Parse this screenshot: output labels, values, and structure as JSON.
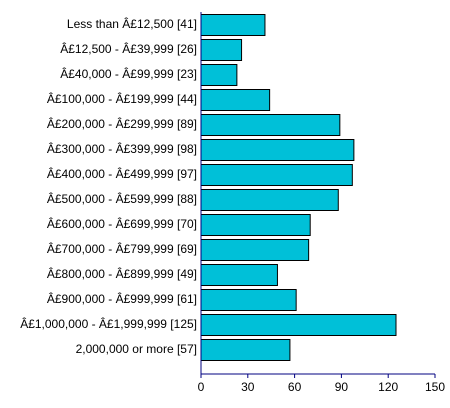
{
  "chart_data": {
    "type": "bar",
    "orientation": "horizontal",
    "categories": [
      "Less than Â£12,500 [41]",
      "Â£12,500 - Â£39,999 [26]",
      "Â£40,000 - Â£99,999 [23]",
      "Â£100,000 - Â£199,999 [44]",
      "Â£200,000 - Â£299,999 [89]",
      "Â£300,000 - Â£399,999 [98]",
      "Â£400,000 - Â£499,999 [97]",
      "Â£500,000 - Â£599,999 [88]",
      "Â£600,000 - Â£699,999 [70]",
      "Â£700,000 - Â£799,999 [69]",
      "Â£800,000 - Â£899,999 [49]",
      "Â£900,000 - Â£999,999 [61]",
      "Â£1,000,000 - Â£1,999,999 [125]",
      "2,000,000 or more [57]"
    ],
    "values": [
      41,
      26,
      23,
      44,
      89,
      98,
      97,
      88,
      70,
      69,
      49,
      61,
      125,
      57
    ],
    "xlim": [
      0,
      150
    ],
    "xticks": [
      "0",
      "30",
      "60",
      "90",
      "120",
      "150"
    ],
    "grid": false,
    "colors": {
      "bar_fill": "#00c0d8",
      "bar_stroke": "#000000",
      "axis": "#000080"
    }
  }
}
